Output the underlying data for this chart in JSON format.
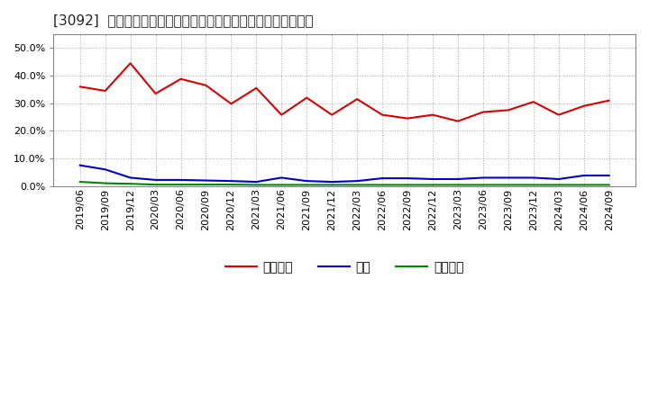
{
  "title": "[3092]  売上債権、在庫、買入債務の総資産に対する比率の推移",
  "background_color": "#ffffff",
  "plot_background": "#ffffff",
  "grid_color": "#aaaaaa",
  "dates": [
    "2019/06",
    "2019/09",
    "2019/12",
    "2020/03",
    "2020/06",
    "2020/09",
    "2020/12",
    "2021/03",
    "2021/06",
    "2021/09",
    "2021/12",
    "2022/03",
    "2022/06",
    "2022/09",
    "2022/12",
    "2023/03",
    "2023/06",
    "2023/09",
    "2023/12",
    "2024/03",
    "2024/06",
    "2024/09"
  ],
  "series": {
    "売上債権": [
      0.36,
      0.345,
      0.445,
      0.335,
      0.388,
      0.365,
      0.298,
      0.355,
      0.258,
      0.32,
      0.258,
      0.315,
      0.258,
      0.245,
      0.258,
      0.235,
      0.268,
      0.275,
      0.305,
      0.258,
      0.29,
      0.31
    ],
    "在庫": [
      0.075,
      0.06,
      0.03,
      0.022,
      0.022,
      0.02,
      0.018,
      0.015,
      0.03,
      0.018,
      0.015,
      0.018,
      0.028,
      0.028,
      0.025,
      0.025,
      0.03,
      0.03,
      0.03,
      0.025,
      0.038,
      0.038
    ],
    "買入債務": [
      0.015,
      0.01,
      0.008,
      0.005,
      0.005,
      0.005,
      0.005,
      0.004,
      0.004,
      0.004,
      0.004,
      0.004,
      0.004,
      0.004,
      0.004,
      0.004,
      0.004,
      0.004,
      0.004,
      0.004,
      0.004,
      0.004
    ]
  },
  "series_order": [
    "売上債権",
    "在庫",
    "買入債務"
  ],
  "line_colors": {
    "売上債権": "#dd0000",
    "在庫": "#0000cc",
    "買入債務": "#008800"
  },
  "ylim": [
    0.0,
    0.55
  ],
  "yticks": [
    0.0,
    0.1,
    0.2,
    0.3,
    0.4,
    0.5
  ],
  "title_fontsize": 11,
  "tick_fontsize": 8,
  "legend_fontsize": 10
}
